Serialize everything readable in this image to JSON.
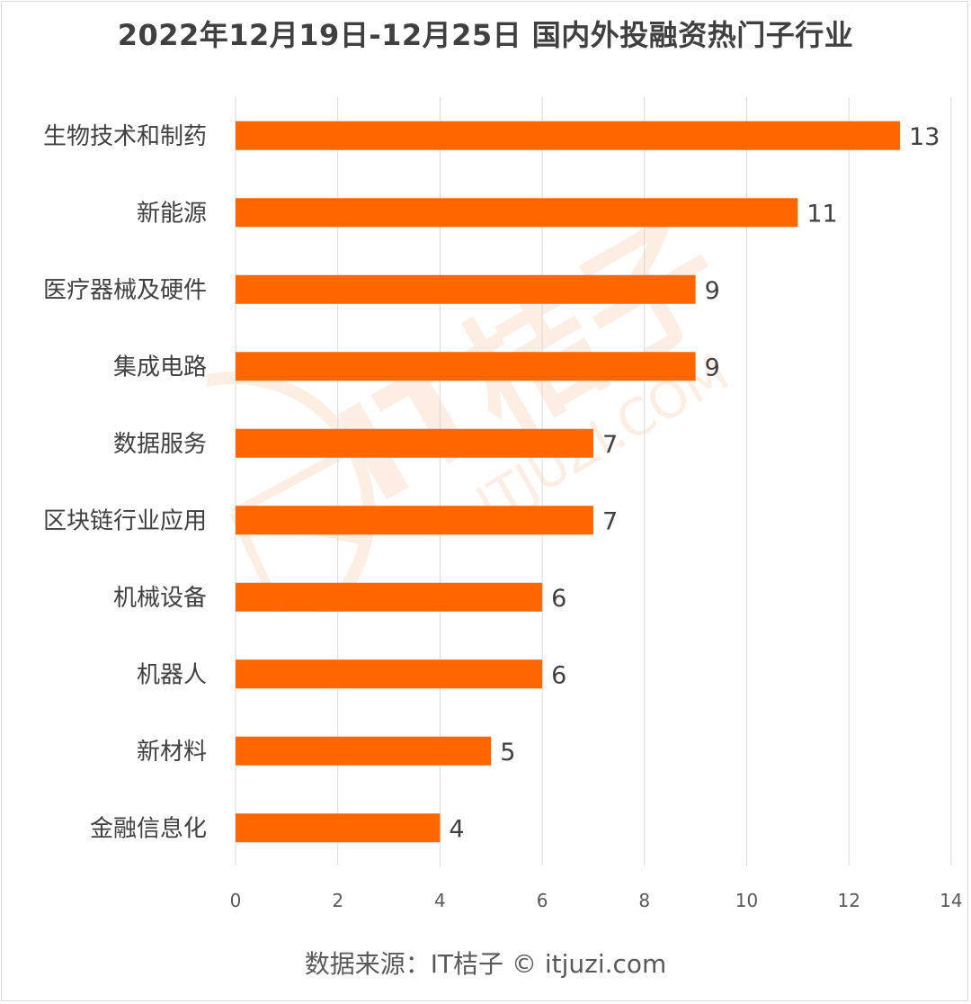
{
  "chart_data": {
    "type": "bar",
    "orientation": "horizontal",
    "title": "2022年12月19日-12月25日 国内外投融资热门子行业",
    "categories": [
      "生物技术和制药",
      "新能源",
      "医疗器械及硬件",
      "集成电路",
      "数据服务",
      "区块链行业应用",
      "机械设备",
      "机器人",
      "新材料",
      "金融信息化"
    ],
    "values": [
      13,
      11,
      9,
      9,
      7,
      7,
      6,
      6,
      5,
      4
    ],
    "xlim": [
      0,
      14
    ],
    "x_ticks": [
      "0",
      "2",
      "4",
      "6",
      "8",
      "10",
      "12",
      "14"
    ],
    "xlabel": "",
    "ylabel": "",
    "grid": "vertical",
    "legend": "none",
    "data_labels": true,
    "bar_color": "#FF6600"
  },
  "footer": {
    "source": "数据来源：IT桔子 © itjuzi.com"
  },
  "watermark": {
    "logo_text": "IT桔子",
    "domain_text": "ITJUZI.COM",
    "color": "#FCE5D6"
  }
}
